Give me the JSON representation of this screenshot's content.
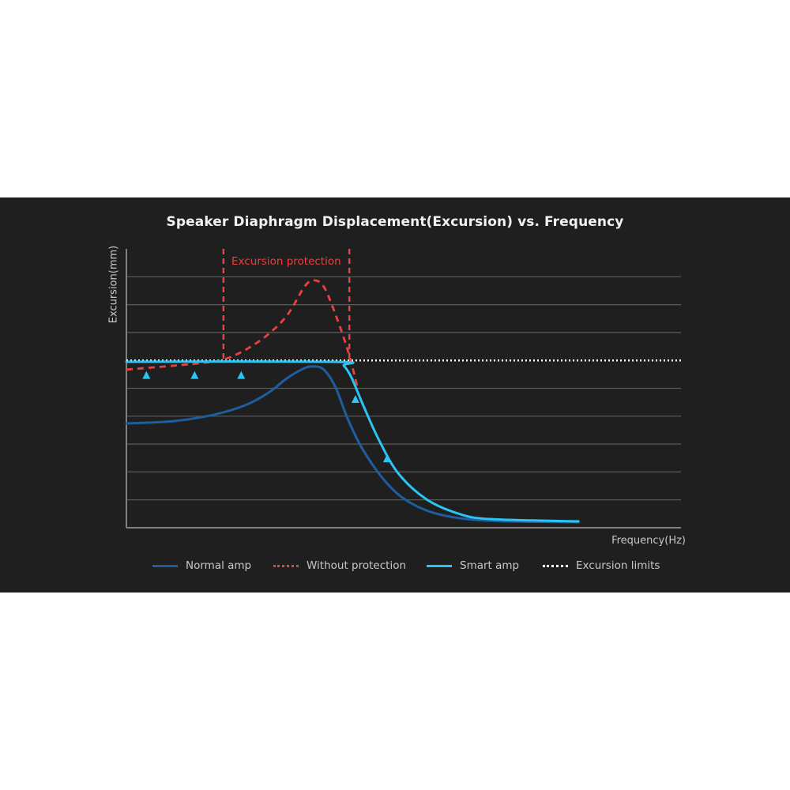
{
  "chart_data": {
    "type": "line",
    "title": "Speaker Diaphragm Displacement(Excursion) vs. Frequency",
    "xlabel": "Frequency(Hz)",
    "ylabel": "Excursion(mm)",
    "xlim": [
      0,
      100
    ],
    "ylim": [
      0,
      10
    ],
    "grid": true,
    "legend_position": "bottom",
    "band": {
      "label": "Excursion protection",
      "x": [
        17.5,
        40.2
      ],
      "color": "#e8413f"
    },
    "excursion_limit": {
      "name": "Excursion limits",
      "y": 6.0,
      "color": "#ffffff"
    },
    "series": [
      {
        "name": "Normal amp",
        "color": "#1f5e9e",
        "style": "solid",
        "x": [
          0,
          8.5,
          15.7,
          21.4,
          25.6,
          29.1,
          32.1,
          33.8,
          35.6,
          37.7,
          39.9,
          42.7,
          47,
          51.3,
          57,
          65.5,
          81.5
        ],
        "y": [
          3.74,
          3.82,
          4.05,
          4.39,
          4.84,
          5.38,
          5.72,
          5.78,
          5.67,
          5.04,
          3.91,
          2.78,
          1.59,
          0.88,
          0.45,
          0.25,
          0.2
        ]
      },
      {
        "name": "Without protection",
        "color": "#e8413f",
        "style": "dashed",
        "x": [
          0,
          8.5,
          14.2,
          17.5,
          21.4,
          25.6,
          29.1,
          32.1,
          33.8,
          35.6,
          37.7,
          39.9,
          41.6
        ],
        "y": [
          5.67,
          5.81,
          5.92,
          6.03,
          6.37,
          6.94,
          7.65,
          8.64,
          8.87,
          8.64,
          7.65,
          6.37,
          5.1
        ]
      },
      {
        "name": "Smart amp",
        "color": "#2cc4f2",
        "style": "solid",
        "x": [
          0,
          37.7,
          39.2,
          40.6,
          42.7,
          45.6,
          49.1,
          54.1,
          59.8,
          65.5,
          81.5
        ],
        "y": [
          5.95,
          5.95,
          5.81,
          5.38,
          4.39,
          3.12,
          1.93,
          1.02,
          0.51,
          0.31,
          0.23
        ]
      }
    ],
    "boost_arrows": [
      {
        "x": 3.6,
        "from": 4.36,
        "to": 5.62
      },
      {
        "x": 12.3,
        "from": 4.36,
        "to": 5.62
      },
      {
        "x": 20.7,
        "from": 4.36,
        "to": 5.62
      },
      {
        "x": 41.3,
        "from": 3.63,
        "to": 4.76
      },
      {
        "x": 47.0,
        "from": 1.78,
        "to": 2.63
      }
    ]
  },
  "legend": [
    {
      "label": "Normal amp",
      "color": "#1f5e9e",
      "style": "solid"
    },
    {
      "label": "Without protection",
      "color": "#e8413f",
      "style": "dotted"
    },
    {
      "label": "Smart amp",
      "color": "#2cc4f2",
      "style": "solid"
    },
    {
      "label": "Excursion limits",
      "color": "#ffffff",
      "style": "dotted"
    }
  ]
}
